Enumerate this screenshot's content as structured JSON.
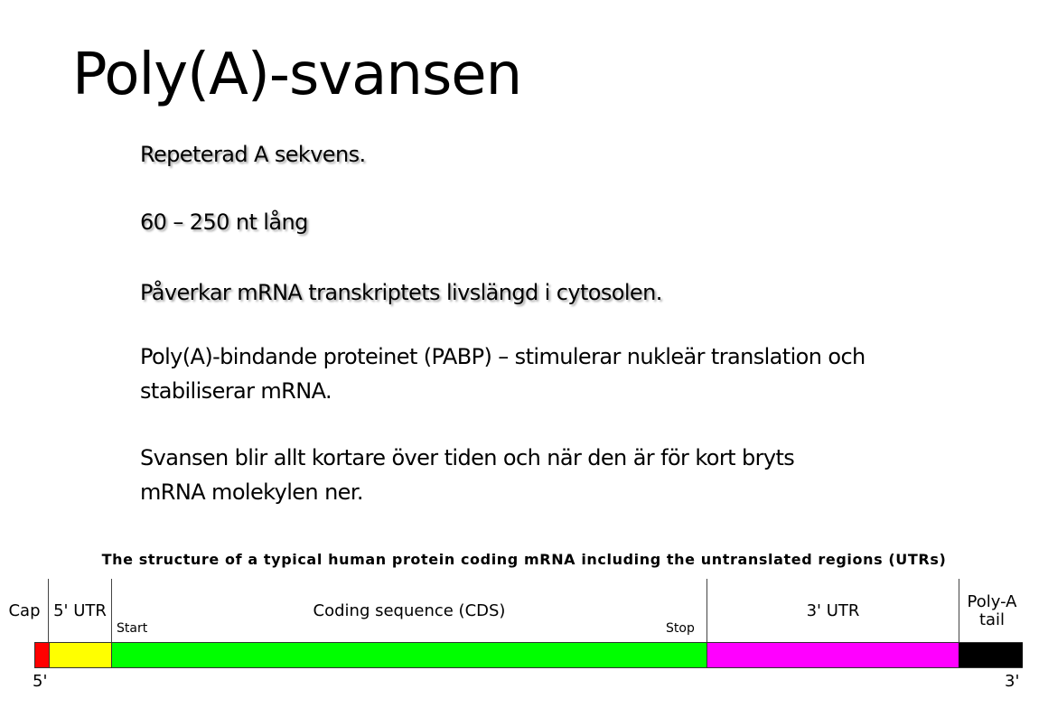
{
  "slide": {
    "title": "Poly(A)-svansen",
    "bullets": [
      "Repeterad A sekvens.",
      "60 – 250 nt lång",
      "Påverkar mRNA transkriptets livslängd i cytosolen.",
      "Poly(A)-bindande proteinet (PABP) – stimulerar nukleär translation och stabiliserar mRNA.",
      "Svansen blir allt kortare över tiden och när den är för kort bryts mRNA molekylen ner."
    ]
  },
  "diagram": {
    "title": "The structure of a typical human protein coding mRNA including the untranslated regions (UTRs)",
    "regions": [
      {
        "label": "Cap",
        "color": "#ff0000"
      },
      {
        "label": "5' UTR",
        "color": "#ffff00"
      },
      {
        "label": "Coding sequence (CDS)",
        "color": "#00ff00"
      },
      {
        "label": "3' UTR",
        "color": "#ff00ff"
      },
      {
        "label": "Poly-A tail",
        "color": "#000000"
      }
    ],
    "start_label": "Start",
    "stop_label": "Stop",
    "five_prime": "5'",
    "three_prime": "3'"
  }
}
